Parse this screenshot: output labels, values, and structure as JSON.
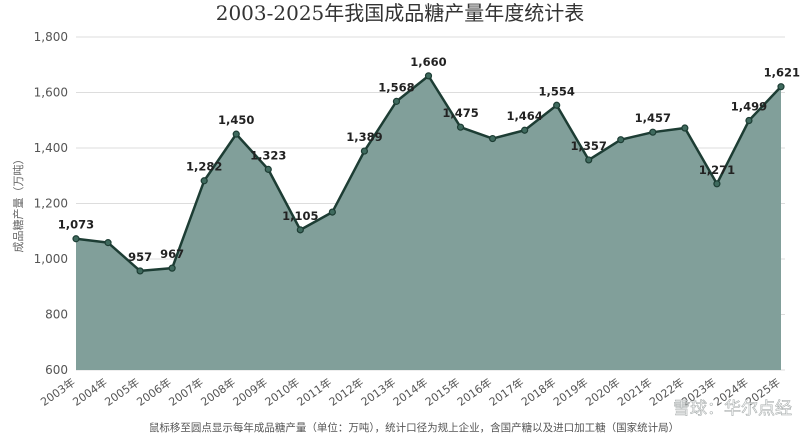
{
  "chart_data": {
    "type": "area",
    "title": "2003-2025年我国成品糖产量年度统计表",
    "ylabel": "成品糖产量（万吨）",
    "xlabel": "",
    "footnote": "鼠标移至圆点显示每年成品糖产量（单位：万吨），统计口径为规上企业，含国产糖以及进口加工糖（国家统计局）",
    "watermark": "雪球：华尔点经",
    "ylim": [
      600,
      1800
    ],
    "yticks": [
      600,
      800,
      1000,
      1200,
      1400,
      1600,
      1800
    ],
    "ytick_labels": [
      "600",
      "800",
      "1,000",
      "1,200",
      "1,400",
      "1,600",
      "1,800"
    ],
    "grid": true,
    "legend": "none",
    "categories": [
      "2003年",
      "2004年",
      "2005年",
      "2006年",
      "2007年",
      "2008年",
      "2009年",
      "2010年",
      "2011年",
      "2012年",
      "2013年",
      "2014年",
      "2015年",
      "2016年",
      "2017年",
      "2018年",
      "2019年",
      "2020年",
      "2021年",
      "2022年",
      "2023年",
      "2024年",
      "2025年"
    ],
    "values": [
      1073,
      1059,
      957,
      967,
      1282,
      1450,
      1323,
      1105,
      1169,
      1389,
      1568,
      1660,
      1475,
      1434,
      1464,
      1554,
      1357,
      1430,
      1457,
      1472,
      1271,
      1499,
      1621
    ],
    "labels": [
      "1,073",
      "",
      "957",
      "967",
      "1,282",
      "1,450",
      "1,323",
      "1,105",
      "",
      "1,389",
      "1,568",
      "1,660",
      "1,475",
      "",
      "1,464",
      "1,554",
      "1,357",
      "",
      "1,457",
      "",
      "1,271",
      "1,499",
      "1,621"
    ],
    "colors": {
      "fill": "#819f9a",
      "line": "#1d3d34",
      "grid": "#dddddd"
    }
  }
}
